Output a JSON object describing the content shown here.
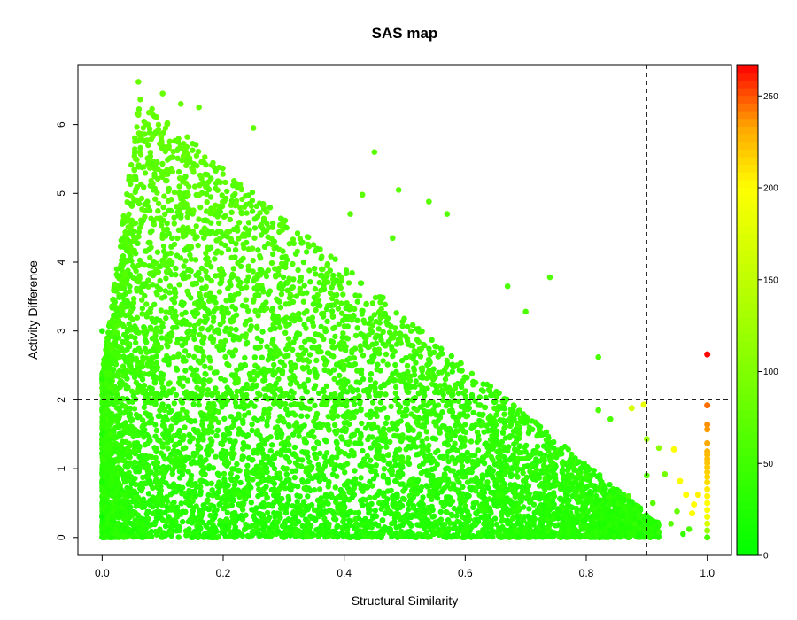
{
  "chart_data": {
    "type": "scatter",
    "title": "SAS map",
    "xlabel": "Structural Similarity",
    "ylabel": "Activity Difference",
    "xlim": [
      -0.04,
      1.04
    ],
    "ylim": [
      -0.26,
      6.87
    ],
    "x_ticks": [
      0.0,
      0.2,
      0.4,
      0.6,
      0.8,
      1.0
    ],
    "x_tick_labels": [
      "0.0",
      "0.2",
      "0.4",
      "0.6",
      "0.8",
      "1.0"
    ],
    "y_ticks": [
      0,
      1,
      2,
      3,
      4,
      5,
      6
    ],
    "y_tick_labels": [
      "0",
      "1",
      "2",
      "3",
      "4",
      "5",
      "6"
    ],
    "grid": false,
    "thresholds": {
      "x": 0.9,
      "y": 2
    },
    "colorbar": {
      "min": 0,
      "max": 267,
      "ticks": [
        0,
        50,
        100,
        150,
        200,
        250
      ],
      "tick_labels": [
        "0",
        "50",
        "100",
        "150",
        "200",
        "250"
      ],
      "colors": [
        "#00ff00",
        "#ffff00",
        "#ffa500",
        "#ff0000"
      ],
      "color_stops": [
        0,
        0.75,
        0.875,
        1
      ],
      "placement": "right"
    },
    "highlight_points": [
      {
        "x": 1.0,
        "y": 2.66,
        "c": 266
      },
      {
        "x": 1.0,
        "y": 1.92,
        "c": 245
      },
      {
        "x": 1.0,
        "y": 1.64,
        "c": 238
      },
      {
        "x": 1.0,
        "y": 1.57,
        "c": 236
      },
      {
        "x": 1.0,
        "y": 1.37,
        "c": 232
      },
      {
        "x": 1.0,
        "y": 1.25,
        "c": 228
      },
      {
        "x": 1.0,
        "y": 1.2,
        "c": 226
      },
      {
        "x": 1.0,
        "y": 1.14,
        "c": 224
      },
      {
        "x": 1.0,
        "y": 1.08,
        "c": 222
      },
      {
        "x": 1.0,
        "y": 1.02,
        "c": 220
      },
      {
        "x": 1.0,
        "y": 0.95,
        "c": 218
      },
      {
        "x": 1.0,
        "y": 0.88,
        "c": 215
      },
      {
        "x": 1.0,
        "y": 0.8,
        "c": 212
      },
      {
        "x": 1.0,
        "y": 0.7,
        "c": 208
      },
      {
        "x": 1.0,
        "y": 0.6,
        "c": 204
      },
      {
        "x": 1.0,
        "y": 0.5,
        "c": 200
      },
      {
        "x": 1.0,
        "y": 0.4,
        "c": 196
      },
      {
        "x": 1.0,
        "y": 0.3,
        "c": 190
      },
      {
        "x": 1.0,
        "y": 0.2,
        "c": 170
      },
      {
        "x": 1.0,
        "y": 0.1,
        "c": 120
      },
      {
        "x": 1.0,
        "y": 0.0,
        "c": 60
      },
      {
        "x": 0.985,
        "y": 0.62,
        "c": 205
      },
      {
        "x": 0.978,
        "y": 0.48,
        "c": 200
      },
      {
        "x": 0.975,
        "y": 0.35,
        "c": 198
      },
      {
        "x": 0.965,
        "y": 0.62,
        "c": 200
      },
      {
        "x": 0.955,
        "y": 0.82,
        "c": 196
      },
      {
        "x": 0.945,
        "y": 1.28,
        "c": 198
      },
      {
        "x": 0.895,
        "y": 1.93,
        "c": 185
      },
      {
        "x": 0.875,
        "y": 1.88,
        "c": 170
      }
    ],
    "sample_points": [
      {
        "x": 0.06,
        "y": 6.62,
        "c": 80
      },
      {
        "x": 0.1,
        "y": 6.45,
        "c": 82
      },
      {
        "x": 0.13,
        "y": 6.3,
        "c": 80
      },
      {
        "x": 0.16,
        "y": 6.25,
        "c": 78
      },
      {
        "x": 0.25,
        "y": 5.95,
        "c": 75
      },
      {
        "x": 0.45,
        "y": 5.6,
        "c": 70
      },
      {
        "x": 0.43,
        "y": 4.98,
        "c": 70
      },
      {
        "x": 0.49,
        "y": 5.05,
        "c": 70
      },
      {
        "x": 0.54,
        "y": 4.88,
        "c": 68
      },
      {
        "x": 0.57,
        "y": 4.7,
        "c": 66
      },
      {
        "x": 0.41,
        "y": 4.7,
        "c": 70
      },
      {
        "x": 0.48,
        "y": 4.35,
        "c": 66
      },
      {
        "x": 0.74,
        "y": 3.78,
        "c": 62
      },
      {
        "x": 0.67,
        "y": 3.65,
        "c": 60
      },
      {
        "x": 0.7,
        "y": 3.28,
        "c": 60
      },
      {
        "x": 0.82,
        "y": 2.62,
        "c": 58
      },
      {
        "x": 0.82,
        "y": 1.85,
        "c": 58
      },
      {
        "x": 0.84,
        "y": 1.72,
        "c": 58
      },
      {
        "x": 0.9,
        "y": 1.43,
        "c": 120
      },
      {
        "x": 0.92,
        "y": 1.3,
        "c": 110
      },
      {
        "x": 0.93,
        "y": 0.92,
        "c": 90
      },
      {
        "x": 0.9,
        "y": 0.9,
        "c": 70
      },
      {
        "x": 0.87,
        "y": 0.6,
        "c": 60
      },
      {
        "x": 0.91,
        "y": 0.5,
        "c": 70
      },
      {
        "x": 0.95,
        "y": 0.38,
        "c": 80
      },
      {
        "x": 0.94,
        "y": 0.2,
        "c": 70
      },
      {
        "x": 0.97,
        "y": 0.12,
        "c": 60
      },
      {
        "x": 0.96,
        "y": 0.05,
        "c": 40
      },
      {
        "x": 0.92,
        "y": 0.08,
        "c": 40
      },
      {
        "x": 0.88,
        "y": 0.2,
        "c": 40
      },
      {
        "x": 0.0,
        "y": 3.0,
        "c": 30
      },
      {
        "x": 0.0,
        "y": 2.3,
        "c": 30
      },
      {
        "x": 0.0,
        "y": 1.5,
        "c": 25
      },
      {
        "x": 0.0,
        "y": 0.8,
        "c": 20
      },
      {
        "x": 0.0,
        "y": 0.3,
        "c": 10
      }
    ]
  }
}
